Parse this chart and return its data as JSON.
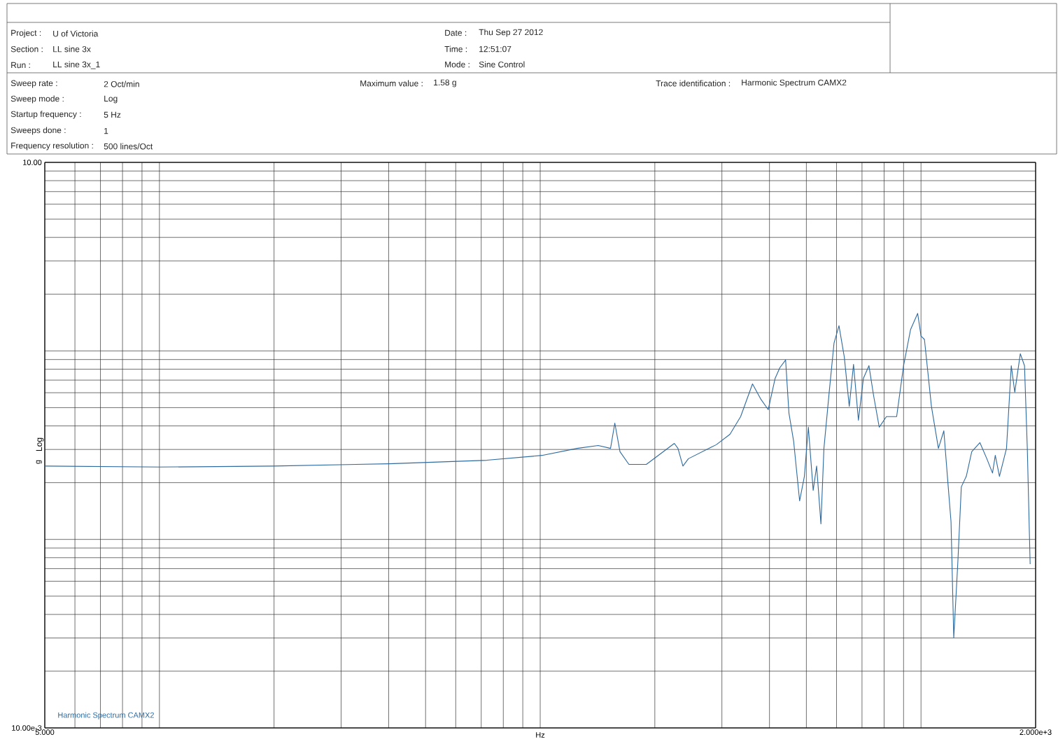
{
  "chart_data": {
    "type": "line",
    "xlabel": "Hz",
    "ylabel": "g",
    "annotations": [
      "Project :",
      "U of Victoria",
      "Section :",
      "LL sine 3x",
      "Run :",
      "LL sine 3x_1",
      "Date :",
      "Thu Sep 27 2012",
      "Time :",
      "12:51:07",
      "Mode :",
      "Sine Control",
      "Sweep rate :",
      "2 Oct/min",
      "Sweep mode :",
      "Log",
      "Startup frequency :",
      "5 Hz",
      "Sweeps done :",
      "1",
      "Frequency resolution :",
      "500 lines/Oct",
      "Maximum value :",
      "1.58 g",
      "Trace identification :",
      "Harmonic Spectrum CAMX2",
      "Log"
    ],
    "log": "xy",
    "grid": true,
    "legend": "bottom left",
    "marker": "none",
    "line_style": "solid",
    "xlim": [
      5,
      2000
    ],
    "ylim": [
      0.01,
      10
    ],
    "xticks": [
      {
        "value": 5,
        "label": "5.000"
      },
      {
        "value": 2000,
        "label": "2.000e+3"
      }
    ],
    "yticks": [
      {
        "value": 0.01,
        "label": "10.00e-3"
      },
      {
        "value": 10,
        "label": "10.00"
      }
    ],
    "series": [
      {
        "name": "Harmonic Spectrum CAMX2",
        "color": "#2e6a9e",
        "x": [
          5,
          10,
          20,
          40,
          72.4,
          101,
          125,
          142,
          153,
          157,
          162,
          171,
          190,
          225,
          230,
          237,
          245,
          290,
          315,
          336,
          361,
          380,
          397,
          414,
          426,
          441,
          450,
          463,
          480,
          494,
          506,
          521,
          532,
          546,
          556,
          574,
          591,
          609,
          629,
          648,
          665,
          685,
          706,
          730,
          751,
          777,
          811,
          863,
          900,
          939,
          980,
          1000,
          1021,
          1065,
          1111,
          1148,
          1173,
          1199,
          1219,
          1250,
          1276,
          1315,
          1359,
          1428,
          1489,
          1541,
          1567,
          1607,
          1677,
          1726,
          1763,
          1823,
          1870,
          1902,
          1935
        ],
        "values": [
          0.245,
          0.242,
          0.245,
          0.252,
          0.263,
          0.279,
          0.304,
          0.315,
          0.304,
          0.414,
          0.292,
          0.25,
          0.25,
          0.323,
          0.304,
          0.245,
          0.268,
          0.318,
          0.361,
          0.448,
          0.668,
          0.553,
          0.488,
          0.716,
          0.815,
          0.895,
          0.467,
          0.331,
          0.16,
          0.216,
          0.394,
          0.182,
          0.245,
          0.121,
          0.304,
          0.604,
          1.1,
          1.36,
          0.926,
          0.508,
          0.849,
          0.429,
          0.716,
          0.835,
          0.578,
          0.394,
          0.448,
          0.448,
          0.835,
          1.3,
          1.58,
          1.2,
          1.15,
          0.508,
          0.304,
          0.377,
          0.216,
          0.124,
          0.03,
          0.077,
          0.19,
          0.216,
          0.292,
          0.326,
          0.268,
          0.225,
          0.279,
          0.216,
          0.304,
          0.835,
          0.604,
          0.966,
          0.835,
          0.304,
          0.074
        ]
      }
    ]
  }
}
